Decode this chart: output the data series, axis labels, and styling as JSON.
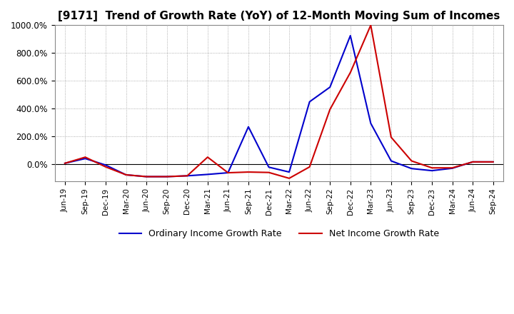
{
  "title": "[9171]  Trend of Growth Rate (YoY) of 12-Month Moving Sum of Incomes",
  "title_fontsize": 11,
  "background_color": "#ffffff",
  "plot_bg_color": "#ffffff",
  "grid_color": "#999999",
  "x_labels": [
    "Jun-19",
    "Sep-19",
    "Dec-19",
    "Mar-20",
    "Jun-20",
    "Sep-20",
    "Dec-20",
    "Mar-21",
    "Jun-21",
    "Sep-21",
    "Dec-21",
    "Mar-22",
    "Jun-22",
    "Sep-22",
    "Dec-22",
    "Mar-23",
    "Jun-23",
    "Sep-23",
    "Dec-23",
    "Mar-24",
    "Jun-24",
    "Sep-24"
  ],
  "ordinary_income": [
    8,
    42,
    -5,
    -75,
    -88,
    -88,
    -82,
    -72,
    -60,
    270,
    -20,
    -55,
    450,
    555,
    925,
    295,
    25,
    -30,
    -45,
    -28,
    18,
    18
  ],
  "net_income": [
    8,
    52,
    -18,
    -75,
    -88,
    -88,
    -82,
    52,
    -60,
    -55,
    -58,
    -100,
    -18,
    395,
    660,
    1000,
    195,
    25,
    -25,
    -25,
    18,
    18
  ],
  "ordinary_color": "#0000cc",
  "net_color": "#cc0000",
  "line_width": 1.5,
  "ylim": [
    -120,
    1000
  ],
  "ytick_values": [
    0,
    200,
    400,
    600,
    800,
    1000
  ],
  "legend_labels": [
    "Ordinary Income Growth Rate",
    "Net Income Growth Rate"
  ]
}
